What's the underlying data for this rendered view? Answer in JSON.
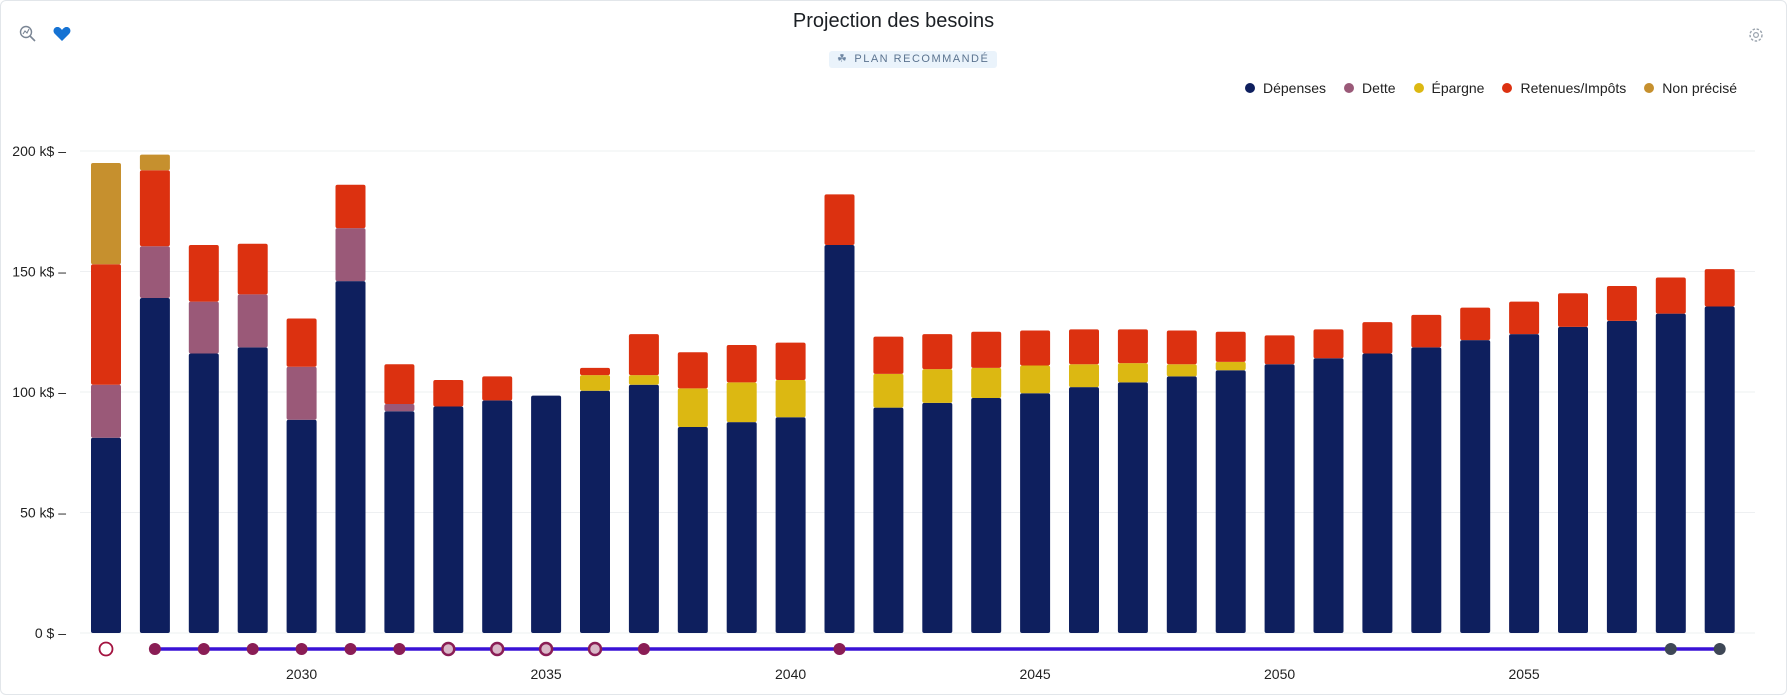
{
  "title": "Projection des besoins",
  "badge": "PLAN RECOMMANDÉ",
  "icons": {
    "left1": "zoom-chart-icon",
    "left2": "heart-icon",
    "right": "settings-icon"
  },
  "colors": {
    "depenses": "#0e1f5e",
    "dette": "#9a5978",
    "epargne": "#dcb812",
    "retenues": "#dc3110",
    "non_precise": "#c6902e",
    "timeline": "#3a12d6",
    "marker": "#8a1d55",
    "marker_dark": "#3e4756"
  },
  "chart_data": {
    "type": "bar",
    "stacked": true,
    "title": "Projection des besoins",
    "xlabel": "",
    "ylabel": "",
    "ylim": [
      0,
      200000
    ],
    "yticks": [
      {
        "value": 0,
        "label": "0 $"
      },
      {
        "value": 50000,
        "label": "50 k$"
      },
      {
        "value": 100000,
        "label": "100 k$"
      },
      {
        "value": 150000,
        "label": "150 k$"
      },
      {
        "value": 200000,
        "label": "200 k$"
      }
    ],
    "x_tick_labels": [
      {
        "year": 2030,
        "label": "2030"
      },
      {
        "year": 2035,
        "label": "2035"
      },
      {
        "year": 2040,
        "label": "2040"
      },
      {
        "year": 2045,
        "label": "2045"
      },
      {
        "year": 2050,
        "label": "2050"
      },
      {
        "year": 2055,
        "label": "2055"
      }
    ],
    "legend_position": "top-right",
    "grid": true,
    "categories": [
      2026,
      2027,
      2028,
      2029,
      2030,
      2031,
      2032,
      2033,
      2034,
      2035,
      2036,
      2037,
      2038,
      2039,
      2040,
      2041,
      2042,
      2043,
      2044,
      2045,
      2046,
      2047,
      2048,
      2049,
      2050,
      2051,
      2052,
      2053,
      2054,
      2055,
      2056,
      2057,
      2058,
      2059
    ],
    "series": [
      {
        "name": "Dépenses",
        "key": "depenses",
        "values": [
          81000,
          139000,
          116000,
          118500,
          88500,
          146000,
          92000,
          94000,
          96500,
          98500,
          100500,
          103000,
          85500,
          87500,
          89500,
          161000,
          93500,
          95500,
          97500,
          99500,
          102000,
          104000,
          106500,
          109000,
          111500,
          114000,
          116000,
          118500,
          121500,
          124000,
          127000,
          129500,
          132500,
          135500
        ]
      },
      {
        "name": "Dette",
        "key": "dette",
        "values": [
          22000,
          21500,
          21500,
          22000,
          22000,
          22000,
          3000,
          0,
          0,
          0,
          0,
          0,
          0,
          0,
          0,
          0,
          0,
          0,
          0,
          0,
          0,
          0,
          0,
          0,
          0,
          0,
          0,
          0,
          0,
          0,
          0,
          0,
          0,
          0
        ]
      },
      {
        "name": "Épargne",
        "key": "epargne",
        "values": [
          0,
          0,
          0,
          0,
          0,
          0,
          0,
          0,
          0,
          0,
          6500,
          4000,
          16000,
          16500,
          15500,
          0,
          14000,
          14000,
          12500,
          11500,
          9500,
          8000,
          5000,
          3500,
          0,
          0,
          0,
          0,
          0,
          0,
          0,
          0,
          0,
          0
        ]
      },
      {
        "name": "Retenues/Impôts",
        "key": "retenues",
        "values": [
          50000,
          31500,
          23500,
          21000,
          20000,
          18000,
          16500,
          11000,
          10000,
          0,
          3000,
          17000,
          15000,
          15500,
          15500,
          21000,
          15500,
          14500,
          15000,
          14500,
          14500,
          14000,
          14000,
          12500,
          12000,
          12000,
          13000,
          13500,
          13500,
          13500,
          14000,
          14500,
          15000,
          15500
        ]
      },
      {
        "name": "Non précisé",
        "key": "non_precise",
        "values": [
          42000,
          6500,
          0,
          0,
          0,
          0,
          0,
          0,
          0,
          0,
          0,
          0,
          0,
          0,
          0,
          0,
          0,
          0,
          0,
          0,
          0,
          0,
          0,
          0,
          0,
          0,
          0,
          0,
          0,
          0,
          0,
          0,
          0,
          0
        ]
      }
    ],
    "timeline_markers": [
      {
        "year": 2026,
        "style": "hollow-red"
      },
      {
        "year": 2027,
        "style": "filled"
      },
      {
        "year": 2028,
        "style": "filled"
      },
      {
        "year": 2029,
        "style": "filled"
      },
      {
        "year": 2030,
        "style": "filled"
      },
      {
        "year": 2031,
        "style": "filled"
      },
      {
        "year": 2032,
        "style": "filled"
      },
      {
        "year": 2033,
        "style": "ring"
      },
      {
        "year": 2034,
        "style": "ring"
      },
      {
        "year": 2035,
        "style": "ring"
      },
      {
        "year": 2036,
        "style": "ring"
      },
      {
        "year": 2037,
        "style": "filled"
      },
      {
        "year": 2041,
        "style": "filled"
      },
      {
        "year": 2058,
        "style": "dark"
      },
      {
        "year": 2059,
        "style": "dark"
      }
    ],
    "timeline_range": [
      2027,
      2059
    ]
  }
}
